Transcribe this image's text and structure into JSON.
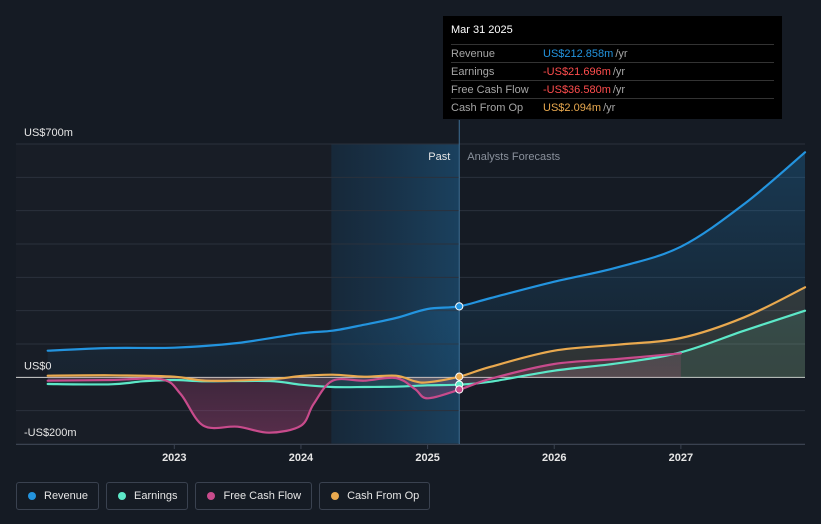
{
  "chart_data": {
    "type": "line",
    "y_ticks": [
      {
        "value": 700,
        "label": "US$700m"
      },
      {
        "value": 0,
        "label": "US$0"
      },
      {
        "value": -200,
        "label": "-US$200m"
      }
    ],
    "x_ticks": [
      {
        "value": 2023,
        "label": "2023"
      },
      {
        "value": 2024,
        "label": "2024"
      },
      {
        "value": 2025,
        "label": "2025"
      },
      {
        "value": 2026,
        "label": "2026"
      },
      {
        "value": 2027,
        "label": "2027"
      }
    ],
    "xlim": [
      2021.75,
      2027.98
    ],
    "ylim": [
      -200,
      700
    ],
    "divider_x": 2025.25,
    "shade_start_x": 2024.24,
    "past_label": "Past",
    "forecast_label": "Analysts Forecasts",
    "series": [
      {
        "name": "Revenue",
        "color": "#2394df",
        "points": [
          [
            2022.0,
            80
          ],
          [
            2022.5,
            88
          ],
          [
            2023.0,
            89
          ],
          [
            2023.5,
            103
          ],
          [
            2024.0,
            132
          ],
          [
            2024.25,
            140
          ],
          [
            2024.5,
            158
          ],
          [
            2024.75,
            178
          ],
          [
            2025.0,
            205
          ],
          [
            2025.25,
            213
          ],
          [
            2025.5,
            238
          ],
          [
            2026.0,
            287
          ],
          [
            2026.5,
            330
          ],
          [
            2027.0,
            392
          ],
          [
            2027.5,
            520
          ],
          [
            2027.98,
            675
          ]
        ],
        "marker": [
          2025.25,
          212.858
        ]
      },
      {
        "name": "Earnings",
        "color": "#5ce8c8",
        "points": [
          [
            2022.0,
            -20
          ],
          [
            2022.5,
            -21
          ],
          [
            2022.75,
            -12
          ],
          [
            2023.0,
            -8
          ],
          [
            2023.25,
            -12
          ],
          [
            2023.75,
            -11
          ],
          [
            2024.0,
            -22
          ],
          [
            2024.25,
            -29
          ],
          [
            2024.5,
            -29
          ],
          [
            2024.75,
            -28
          ],
          [
            2025.0,
            -24
          ],
          [
            2025.25,
            -22
          ],
          [
            2025.5,
            -13
          ],
          [
            2026.0,
            20
          ],
          [
            2026.5,
            42
          ],
          [
            2027.0,
            75
          ],
          [
            2027.5,
            140
          ],
          [
            2027.98,
            200
          ]
        ],
        "marker": [
          2025.25,
          -21.696
        ]
      },
      {
        "name": "Free Cash Flow",
        "color": "#c84b8c",
        "points": [
          [
            2022.0,
            -10
          ],
          [
            2022.5,
            -8
          ],
          [
            2022.9,
            -6
          ],
          [
            2023.05,
            -50
          ],
          [
            2023.23,
            -145
          ],
          [
            2023.5,
            -148
          ],
          [
            2023.75,
            -166
          ],
          [
            2024.0,
            -145
          ],
          [
            2024.1,
            -80
          ],
          [
            2024.25,
            -10
          ],
          [
            2024.5,
            -10
          ],
          [
            2024.75,
            -2
          ],
          [
            2024.9,
            -35
          ],
          [
            2025.0,
            -63
          ],
          [
            2025.25,
            -37
          ],
          [
            2025.5,
            -4
          ],
          [
            2026.0,
            40
          ],
          [
            2026.5,
            55
          ],
          [
            2027.0,
            72
          ]
        ],
        "marker": [
          2025.25,
          -36.58
        ]
      },
      {
        "name": "Cash From Op",
        "color": "#e9a94f",
        "points": [
          [
            2022.0,
            5
          ],
          [
            2022.5,
            6
          ],
          [
            2023.0,
            2
          ],
          [
            2023.25,
            -10
          ],
          [
            2023.75,
            -6
          ],
          [
            2024.0,
            4
          ],
          [
            2024.25,
            8
          ],
          [
            2024.5,
            2
          ],
          [
            2024.75,
            5
          ],
          [
            2024.9,
            -12
          ],
          [
            2025.0,
            -15
          ],
          [
            2025.25,
            2
          ],
          [
            2025.5,
            32
          ],
          [
            2026.0,
            80
          ],
          [
            2026.5,
            98
          ],
          [
            2027.0,
            118
          ],
          [
            2027.5,
            180
          ],
          [
            2027.98,
            270
          ]
        ],
        "marker": [
          2025.25,
          2.094
        ]
      }
    ]
  },
  "tooltip": {
    "date": "Mar 31 2025",
    "rows": [
      {
        "label": "Revenue",
        "value": "US$212.858m",
        "unit": "/yr",
        "color": "#2394df"
      },
      {
        "label": "Earnings",
        "value": "-US$21.696m",
        "unit": "/yr",
        "color": "#ff4d4d"
      },
      {
        "label": "Free Cash Flow",
        "value": "-US$36.580m",
        "unit": "/yr",
        "color": "#ff4d4d"
      },
      {
        "label": "Cash From Op",
        "value": "US$2.094m",
        "unit": "/yr",
        "color": "#e9a94f"
      }
    ]
  },
  "legend": [
    {
      "label": "Revenue",
      "color": "#2394df"
    },
    {
      "label": "Earnings",
      "color": "#5ce8c8"
    },
    {
      "label": "Free Cash Flow",
      "color": "#c84b8c"
    },
    {
      "label": "Cash From Op",
      "color": "#e9a94f"
    }
  ]
}
